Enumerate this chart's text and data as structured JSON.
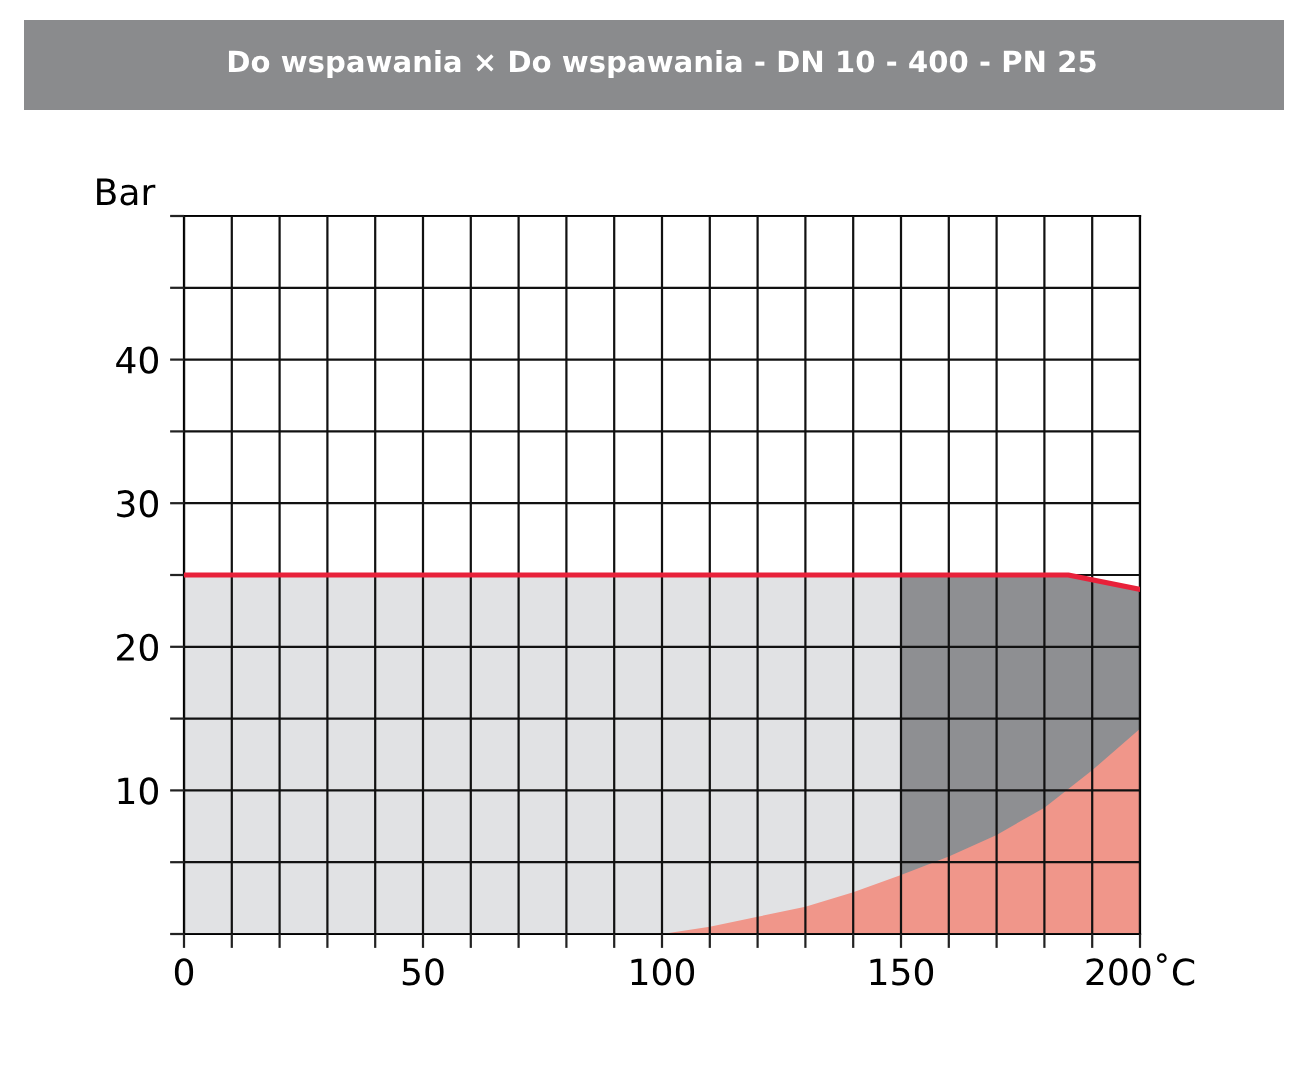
{
  "chart_data": {
    "type": "area",
    "title": "Do wspawania × Do wspawania - DN 10 - 400 - PN 25",
    "ylabel": "Bar",
    "series": [
      {
        "color": "#e1e2e4",
        "x": [
          0,
          150
        ],
        "values": [
          25,
          25
        ]
      },
      {
        "color": "#8e8f92",
        "x": [
          150,
          185,
          200
        ],
        "values": [
          25,
          25,
          24
        ]
      },
      {
        "color": "#f0968a",
        "x": [
          100,
          110,
          120,
          130,
          140,
          150,
          160,
          170,
          180,
          190,
          200
        ],
        "values": [
          0,
          0.5,
          1.2,
          1.9,
          2.9,
          4.1,
          5.4,
          6.9,
          8.8,
          11.4,
          14.3
        ]
      },
      {
        "type": "line",
        "color": "#e8213a",
        "x": [
          0,
          185,
          200
        ],
        "values": [
          25,
          25,
          24
        ]
      }
    ],
    "xlim": [
      0,
      200
    ],
    "ylim": [
      0,
      50
    ],
    "xticks": [
      0,
      {
        "value": 10,
        "label": null
      },
      {
        "value": 20,
        "label": null
      },
      {
        "value": 30,
        "label": null
      },
      {
        "value": 40,
        "label": null
      },
      50,
      {
        "value": 60,
        "label": null
      },
      {
        "value": 70,
        "label": null
      },
      {
        "value": 80,
        "label": null
      },
      {
        "value": 90,
        "label": null
      },
      100,
      {
        "value": 110,
        "label": null
      },
      {
        "value": 120,
        "label": null
      },
      {
        "value": 130,
        "label": null
      },
      {
        "value": 140,
        "label": null
      },
      150,
      {
        "value": 160,
        "label": null
      },
      {
        "value": 170,
        "label": null
      },
      {
        "value": 180,
        "label": null
      },
      {
        "value": 190,
        "label": null
      },
      {
        "value": 200,
        "label": "200˚C"
      }
    ],
    "yticks": [
      {
        "value": 0,
        "label": null
      },
      {
        "value": 5,
        "label": null
      },
      10,
      {
        "value": 15,
        "label": null
      },
      20,
      {
        "value": 25,
        "label": null
      },
      30,
      {
        "value": 35,
        "label": null
      },
      40,
      {
        "value": 45,
        "label": null
      },
      {
        "value": 50,
        "label": null
      }
    ],
    "grid": true,
    "legend": false
  }
}
